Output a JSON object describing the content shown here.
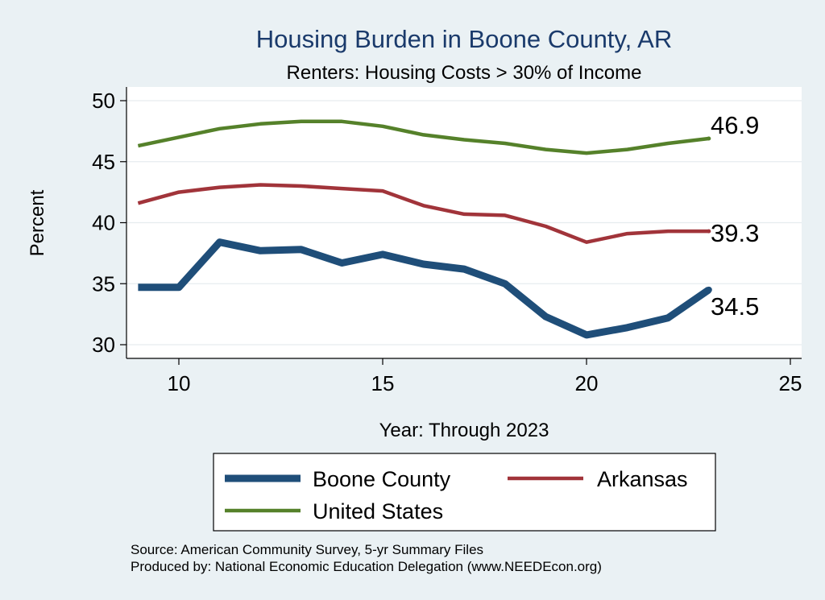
{
  "chart_data": {
    "type": "line",
    "title": "Housing Burden in Boone County, AR",
    "subtitle": "Renters: Housing Costs > 30% of Income",
    "xlabel": "Year: Through 2023",
    "ylabel": "Percent",
    "xlim": [
      9,
      25
    ],
    "ylim": [
      30,
      51
    ],
    "xticks": [
      10,
      15,
      20,
      25
    ],
    "yticks": [
      30,
      35,
      40,
      45,
      50
    ],
    "x": [
      9,
      10,
      11,
      12,
      13,
      14,
      15,
      16,
      17,
      18,
      19,
      20,
      21,
      22,
      23
    ],
    "series": [
      {
        "name": "Boone County",
        "color": "#1f4e79",
        "values": [
          34.7,
          34.7,
          38.4,
          37.7,
          37.8,
          36.7,
          37.4,
          36.6,
          36.2,
          35.0,
          32.3,
          30.8,
          31.4,
          32.2,
          34.5
        ],
        "end_label": "34.5"
      },
      {
        "name": "Arkansas",
        "color": "#a1343a",
        "values": [
          41.6,
          42.5,
          42.9,
          43.1,
          43.0,
          42.8,
          42.6,
          41.4,
          40.7,
          40.6,
          39.7,
          38.4,
          39.1,
          39.3,
          39.3
        ],
        "end_label": "39.3"
      },
      {
        "name": "United States",
        "color": "#55812a",
        "values": [
          46.3,
          47.0,
          47.7,
          48.1,
          48.3,
          48.3,
          47.9,
          47.2,
          46.8,
          46.5,
          46.0,
          45.7,
          46.0,
          46.5,
          46.9
        ],
        "end_label": "46.9"
      }
    ],
    "legend": {
      "position": "bottom"
    },
    "notes": [
      "Source: American Community Survey, 5-yr Summary Files",
      "Produced by: National Economic Education Delegation (www.NEEDEcon.org)"
    ]
  }
}
